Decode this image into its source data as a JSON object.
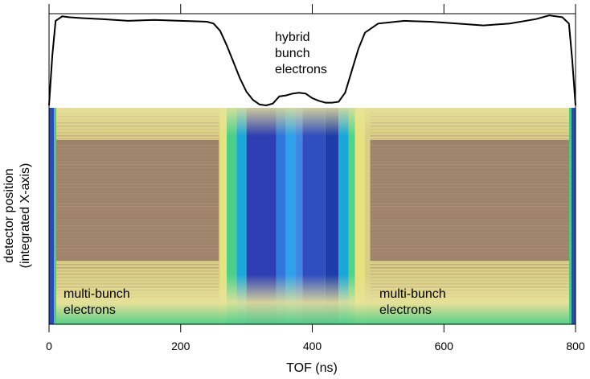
{
  "chart_data": {
    "type": "heatmap",
    "xlabel": "TOF (ns)",
    "ylabel_lines": [
      "detector position",
      "(integrated X-axis)"
    ],
    "xlim": [
      0,
      800
    ],
    "xticks": [
      0,
      200,
      400,
      600,
      800
    ],
    "xtick_labels": [
      "0",
      "200",
      "400",
      "600",
      "800"
    ],
    "top_ticks": [
      0,
      200,
      400,
      600,
      800
    ],
    "annotations": {
      "hybrid": [
        "hybrid",
        "bunch",
        "electrons"
      ],
      "multi_left": [
        "multi-bunch",
        "electrons"
      ],
      "multi_right": [
        "multi-bunch",
        "electrons"
      ]
    },
    "profile": {
      "type": "line",
      "description_units": "relative intensity (0-1)",
      "x": [
        0,
        5,
        10,
        20,
        30,
        50,
        80,
        120,
        160,
        200,
        240,
        250,
        260,
        270,
        280,
        290,
        300,
        310,
        320,
        330,
        340,
        350,
        360,
        370,
        380,
        390,
        400,
        410,
        420,
        430,
        440,
        450,
        460,
        470,
        480,
        500,
        540,
        580,
        620,
        660,
        700,
        740,
        760,
        780,
        790,
        795,
        800
      ],
      "y": [
        0.0,
        0.55,
        0.93,
        0.98,
        0.97,
        0.96,
        0.95,
        0.93,
        0.94,
        0.93,
        0.92,
        0.9,
        0.82,
        0.66,
        0.48,
        0.3,
        0.15,
        0.06,
        0.01,
        0.0,
        0.02,
        0.1,
        0.11,
        0.13,
        0.14,
        0.13,
        0.08,
        0.05,
        0.03,
        0.03,
        0.04,
        0.14,
        0.38,
        0.62,
        0.8,
        0.9,
        0.93,
        0.92,
        0.9,
        0.88,
        0.9,
        0.95,
        0.99,
        0.97,
        0.9,
        0.5,
        0.0
      ]
    },
    "heatmap": {
      "x_boundaries": [
        0,
        260,
        270,
        285,
        300,
        345,
        360,
        375,
        385,
        420,
        440,
        455,
        465,
        480,
        800
      ],
      "color_bands": [
        "#d9cf85",
        "#e6e27e",
        "#4bd08a",
        "#1aa8d8",
        "#2e3fb3",
        "#2f77dd",
        "#2fa0ea",
        "#3f86e6",
        "#2f4ec0",
        "#1e3da8",
        "#19a6d8",
        "#50d38a",
        "#e6e27e",
        "#d9cf85"
      ],
      "colors": {
        "brown": "#9a7e67",
        "yellow": "#e4dc84",
        "green": "#49cc7e",
        "cyan": "#22aee0",
        "blue": "#2c3db0",
        "lightblue": "#3a8ee6"
      }
    }
  }
}
